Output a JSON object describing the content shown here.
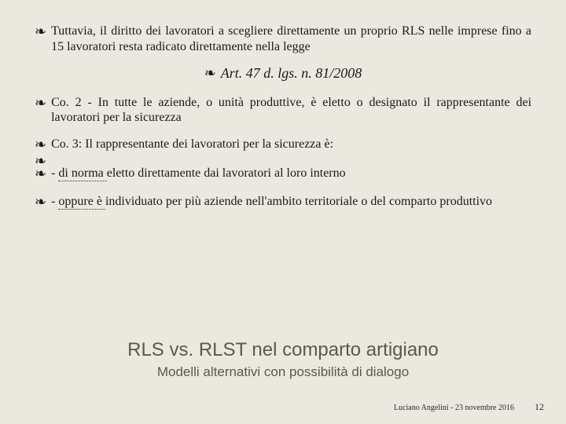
{
  "colors": {
    "background": "#ebe8df",
    "text": "#1a1a1a",
    "title": "#5f574a"
  },
  "bulletGlyph": "❧",
  "para1": "Tuttavia, il diritto dei lavoratori a scegliere direttamente un proprio  RLS nelle imprese fino a 15 lavoratori resta radicato direttamente nella legge",
  "art": {
    "label": "Art.",
    "rest": " 47 d. lgs. n. 81/2008"
  },
  "para2": {
    "pre": "Co. 2 ",
    "dash": "- ",
    "rest": "In tutte le aziende, o unità produttive, è eletto o designato il rappresentante dei lavoratori per la sicurezza"
  },
  "para3": "Co. 3: Il rappresentante dei lavoratori per la sicurezza è:",
  "para4": {
    "pre": "- ",
    "underlined": "di norma ",
    "rest": "eletto direttamente dai lavoratori al loro interno"
  },
  "para5": {
    "pre": "- ",
    "underlined": "oppure è ",
    "rest": "individuato per più aziende nell'ambito territoriale o del comparto produttivo"
  },
  "title": "RLS vs. RLST nel comparto artigiano",
  "subtitle": "Modelli alternativi con possibilità di dialogo",
  "footer": {
    "author": "Luciano Angelini - 23 novembre 2016",
    "page": "12"
  }
}
